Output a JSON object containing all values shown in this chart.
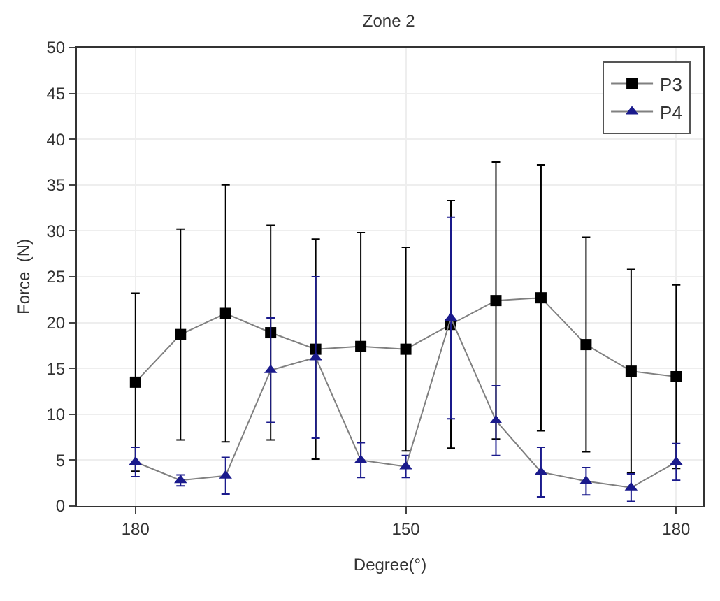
{
  "chart_data": {
    "type": "line",
    "title": "Zone 2",
    "xlabel": "Degree(°)",
    "ylabel": "Force  (N)",
    "categories": [
      "180",
      null,
      null,
      null,
      null,
      null,
      "150",
      null,
      null,
      null,
      null,
      null,
      "180"
    ],
    "ylim": [
      0,
      50
    ],
    "yticks": [
      0,
      5,
      10,
      15,
      20,
      25,
      30,
      35,
      40,
      45,
      50
    ],
    "grid": true,
    "legend": "top right",
    "series": [
      {
        "name": "P3",
        "color": "#000000",
        "marker": "square",
        "values": [
          13.5,
          18.7,
          21,
          18.9,
          17.1,
          17.4,
          17.1,
          19.8,
          22.4,
          22.7,
          17.6,
          14.7,
          14.1
        ],
        "errors": [
          9.7,
          11.5,
          14,
          11.7,
          12,
          12.4,
          11.1,
          13.5,
          15.1,
          14.5,
          11.7,
          11.1,
          10
        ]
      },
      {
        "name": "P4",
        "color": "#1a1a8c",
        "marker": "triangle",
        "values": [
          4.8,
          2.8,
          3.3,
          14.8,
          16.2,
          5.0,
          4.3,
          20.5,
          9.3,
          3.7,
          2.7,
          2.0,
          4.8
        ],
        "errors": [
          1.6,
          0.6,
          2,
          5.7,
          8.8,
          1.9,
          1.2,
          11,
          3.8,
          2.7,
          1.5,
          1.5,
          2
        ]
      }
    ]
  }
}
